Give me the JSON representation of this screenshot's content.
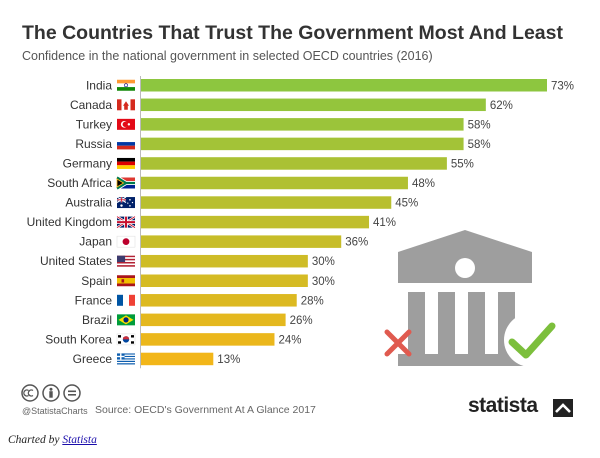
{
  "chart_data": {
    "type": "bar",
    "orientation": "horizontal",
    "title": "The Countries That Trust The Government Most And Least",
    "subtitle": "Confidence in the national government in selected OECD countries (2016)",
    "categories": [
      "India",
      "Canada",
      "Turkey",
      "Russia",
      "Germany",
      "South Africa",
      "Australia",
      "United Kingdom",
      "Japan",
      "United States",
      "Spain",
      "France",
      "Brazil",
      "South Korea",
      "Greece"
    ],
    "values": [
      73,
      62,
      58,
      58,
      55,
      48,
      45,
      41,
      36,
      30,
      30,
      28,
      26,
      24,
      13
    ],
    "value_labels": [
      "73%",
      "62%",
      "58%",
      "58%",
      "55%",
      "48%",
      "45%",
      "41%",
      "36%",
      "30%",
      "30%",
      "28%",
      "26%",
      "24%",
      "13%"
    ],
    "xlim": [
      0,
      73
    ],
    "grid": false,
    "legend": "none",
    "colors": {
      "high": "#8dc63f",
      "low": "#f2b619"
    }
  },
  "flags": [
    "india-flag-icon",
    "canada-flag-icon",
    "turkey-flag-icon",
    "russia-flag-icon",
    "germany-flag-icon",
    "south-africa-flag-icon",
    "australia-flag-icon",
    "united-kingdom-flag-icon",
    "japan-flag-icon",
    "united-states-flag-icon",
    "spain-flag-icon",
    "france-flag-icon",
    "brazil-flag-icon",
    "south-korea-flag-icon",
    "greece-flag-icon"
  ],
  "illustration": {
    "icons": [
      "government-building-icon",
      "cross-mark-icon",
      "check-mark-icon"
    ],
    "colors": {
      "building": "#9e9e9e",
      "cross": "#e05a4f",
      "check": "#7cbf3c"
    }
  },
  "footer": {
    "handle": "@StatistaCharts",
    "source": "Source: OECD's Government At A Glance 2017",
    "brand": "statista",
    "license_icons": [
      "cc-icon",
      "attribution-icon",
      "no-derivatives-icon"
    ]
  },
  "credit": {
    "prefix": "Charted by",
    "link_text": "Statista"
  }
}
